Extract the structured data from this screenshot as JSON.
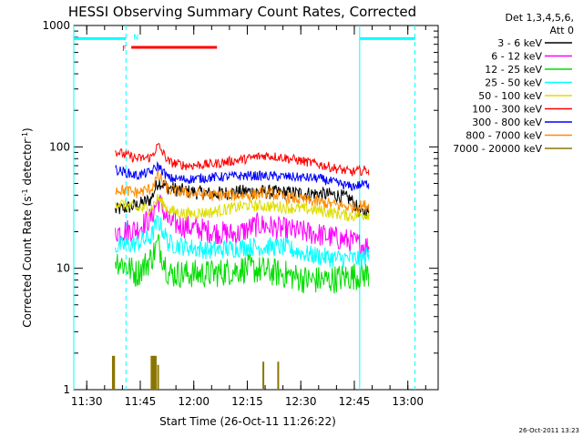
{
  "chart_data": {
    "type": "line",
    "title": "HESSI Observing Summary Count Rates, Corrected",
    "xlabel": "Start Time (26-Oct-11 11:26:22)",
    "ylabel": "Corrected Count Rate (s",
    "ylabel_sup1": "-1",
    "ylabel_mid": " detector",
    "ylabel_sup2": "-1",
    "ylabel_end": ")",
    "yscale": "log",
    "ylim": [
      1,
      1000
    ],
    "y_ticks": [
      {
        "value": 1,
        "label": "1"
      },
      {
        "value": 10,
        "label": "10"
      },
      {
        "value": 100,
        "label": "100"
      },
      {
        "value": 1000,
        "label": "1000"
      }
    ],
    "xlim": [
      "11:26:22",
      "13:08:30"
    ],
    "x_ticks": [
      "11:30",
      "11:45",
      "12:00",
      "12:15",
      "12:30",
      "12:45",
      "13:00"
    ],
    "legend_header": [
      "Det 1,3,4,5,6,",
      "Att 0"
    ],
    "series": [
      {
        "name": "3 - 6 keV",
        "color": "#000000",
        "points": [
          [
            "11:38",
            30
          ],
          [
            "11:44",
            33
          ],
          [
            "11:48",
            37
          ],
          [
            "11:50",
            52
          ],
          [
            "11:53",
            46
          ],
          [
            "11:58",
            43
          ],
          [
            "12:05",
            41
          ],
          [
            "12:15",
            43
          ],
          [
            "12:25",
            42
          ],
          [
            "12:35",
            41
          ],
          [
            "12:40",
            40
          ],
          [
            "12:44",
            37
          ],
          [
            "12:47",
            28
          ],
          [
            "12:49",
            30
          ]
        ]
      },
      {
        "name": "6 - 12 keV",
        "color": "#ff00ff",
        "points": [
          [
            "11:38",
            20
          ],
          [
            "11:44",
            21
          ],
          [
            "11:48",
            26
          ],
          [
            "11:50",
            37
          ],
          [
            "11:53",
            24
          ],
          [
            "11:58",
            22
          ],
          [
            "12:05",
            20
          ],
          [
            "12:12",
            19
          ],
          [
            "12:18",
            23
          ],
          [
            "12:25",
            21
          ],
          [
            "12:35",
            19
          ],
          [
            "12:43",
            17
          ],
          [
            "12:49",
            15
          ]
        ]
      },
      {
        "name": "12 - 25 keV",
        "color": "#00dd00",
        "points": [
          [
            "11:38",
            12
          ],
          [
            "11:44",
            9
          ],
          [
            "11:48",
            12
          ],
          [
            "11:50",
            16
          ],
          [
            "11:53",
            9
          ],
          [
            "11:58",
            9
          ],
          [
            "12:05",
            9
          ],
          [
            "12:15",
            10
          ],
          [
            "12:25",
            9
          ],
          [
            "12:32",
            8
          ],
          [
            "12:38",
            8
          ],
          [
            "12:43",
            8.5
          ],
          [
            "12:49",
            9
          ]
        ]
      },
      {
        "name": "25 - 50 keV",
        "color": "#00ffff",
        "points": [
          [
            "11:38",
            15
          ],
          [
            "11:44",
            16
          ],
          [
            "11:48",
            18
          ],
          [
            "11:50",
            25
          ],
          [
            "11:53",
            16
          ],
          [
            "11:58",
            15
          ],
          [
            "12:05",
            14
          ],
          [
            "12:15",
            15
          ],
          [
            "12:25",
            15
          ],
          [
            "12:32",
            13
          ],
          [
            "12:40",
            12
          ],
          [
            "12:47",
            12
          ],
          [
            "12:49",
            13
          ]
        ]
      },
      {
        "name": "50 - 100 keV",
        "color": "#dddd00",
        "points": [
          [
            "11:38",
            35
          ],
          [
            "11:44",
            31
          ],
          [
            "11:48",
            31
          ],
          [
            "11:50",
            38
          ],
          [
            "11:53",
            30
          ],
          [
            "11:58",
            28
          ],
          [
            "12:05",
            29
          ],
          [
            "12:15",
            33
          ],
          [
            "12:25",
            32
          ],
          [
            "12:35",
            30
          ],
          [
            "12:44",
            27
          ],
          [
            "12:49",
            28
          ]
        ]
      },
      {
        "name": "100 - 300 keV",
        "color": "#ff0000",
        "points": [
          [
            "11:38",
            92
          ],
          [
            "11:44",
            80
          ],
          [
            "11:48",
            82
          ],
          [
            "11:50",
            103
          ],
          [
            "11:53",
            75
          ],
          [
            "11:58",
            70
          ],
          [
            "12:05",
            72
          ],
          [
            "12:15",
            80
          ],
          [
            "12:20",
            85
          ],
          [
            "12:25",
            82
          ],
          [
            "12:35",
            72
          ],
          [
            "12:44",
            62
          ],
          [
            "12:49",
            65
          ]
        ]
      },
      {
        "name": "300 - 800 keV",
        "color": "#0000ff",
        "points": [
          [
            "11:38",
            65
          ],
          [
            "11:44",
            58
          ],
          [
            "11:48",
            62
          ],
          [
            "11:50",
            70
          ],
          [
            "11:53",
            55
          ],
          [
            "11:58",
            54
          ],
          [
            "12:05",
            56
          ],
          [
            "12:15",
            58
          ],
          [
            "12:25",
            57
          ],
          [
            "12:35",
            55
          ],
          [
            "12:44",
            47
          ],
          [
            "12:49",
            50
          ]
        ]
      },
      {
        "name": "800 - 7000 keV",
        "color": "#ff8c00",
        "points": [
          [
            "11:38",
            45
          ],
          [
            "11:44",
            42
          ],
          [
            "11:48",
            45
          ],
          [
            "11:50",
            58
          ],
          [
            "11:53",
            44
          ],
          [
            "11:58",
            42
          ],
          [
            "12:05",
            40
          ],
          [
            "12:15",
            40
          ],
          [
            "12:20",
            42
          ],
          [
            "12:25",
            39
          ],
          [
            "12:35",
            35
          ],
          [
            "12:44",
            32
          ],
          [
            "12:49",
            33
          ]
        ]
      },
      {
        "name": "7000 - 20000 keV",
        "color": "#8b7500",
        "points": []
      }
    ],
    "bars_7000_20000": [
      {
        "t": "11:37:20",
        "value": 1.9
      },
      {
        "t": "11:37:40",
        "value": 1.9
      },
      {
        "t": "11:48:10",
        "value": 1.9
      },
      {
        "t": "11:48:35",
        "value": 1.9
      },
      {
        "t": "11:48:55",
        "value": 1.9
      },
      {
        "t": "11:49:20",
        "value": 1.9
      },
      {
        "t": "11:50:00",
        "value": 1.6
      },
      {
        "t": "12:19:30",
        "value": 1.7
      },
      {
        "t": "12:23:40",
        "value": 1.7
      }
    ],
    "night_markers": {
      "N_dashed_at": "11:41:00",
      "N_label": "N",
      "day_end_solid": "12:46:30",
      "dashed_2": "13:02:00",
      "level": 780,
      "segments": [
        [
          "11:26:22",
          "11:41:00"
        ],
        [
          "12:46:30",
          "13:02:00"
        ]
      ],
      "color": "#00ffff"
    },
    "flare_marker": {
      "label": "F",
      "start": "11:42:30",
      "end": "12:06:30",
      "level": 660,
      "color": "#ff0000"
    },
    "grid": false,
    "legend_position": "outside-right"
  },
  "footer_stamp": "26-Oct-2011 13:23"
}
